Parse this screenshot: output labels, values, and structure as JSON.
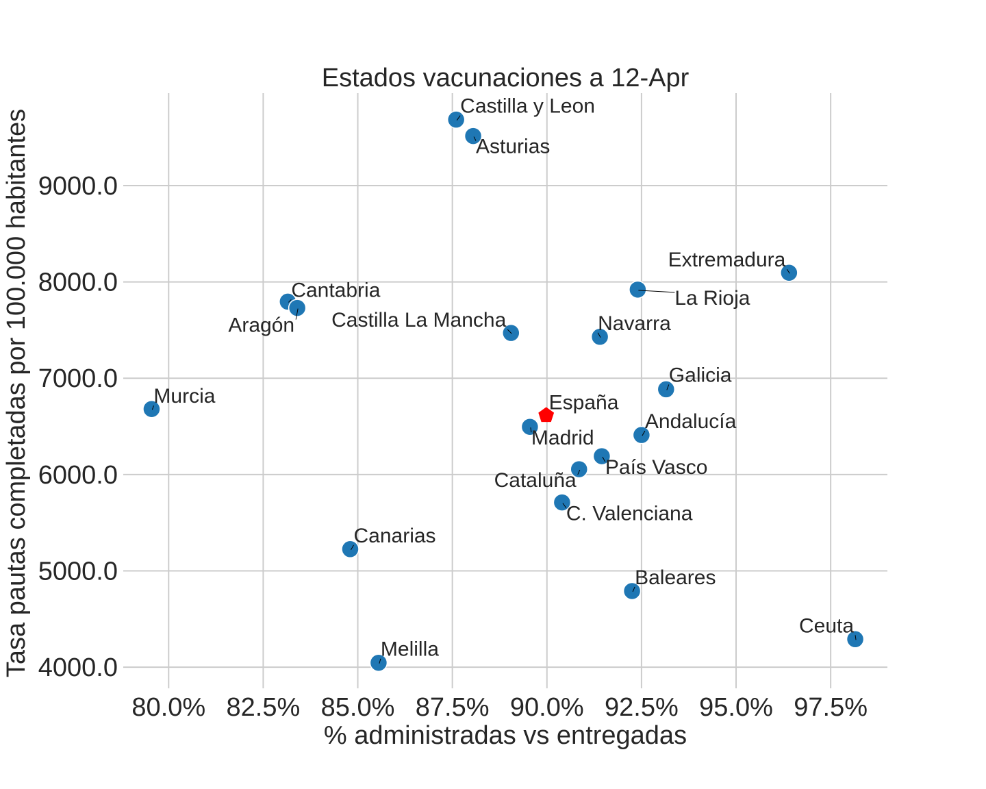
{
  "chart_data": {
    "type": "scatter",
    "title": "Estados vacunaciones a 12-Apr",
    "xlabel": "% administradas vs entregadas",
    "ylabel": "Tasa pautas completadas por 100.000 habitantes",
    "xlim": [
      78.8,
      99.0
    ],
    "ylim": [
      3780,
      9960
    ],
    "xticks": [
      80.0,
      82.5,
      85.0,
      87.5,
      90.0,
      92.5,
      95.0,
      97.5
    ],
    "xtick_labels": [
      "80.0%",
      "82.5%",
      "85.0%",
      "87.5%",
      "90.0%",
      "92.5%",
      "95.0%",
      "97.5%"
    ],
    "yticks": [
      4000,
      5000,
      6000,
      7000,
      8000,
      9000
    ],
    "ytick_labels": [
      "4000.0",
      "5000.0",
      "6000.0",
      "7000.0",
      "8000.0",
      "9000.0"
    ],
    "grid": true,
    "point_color": "#1f77b4",
    "highlight_color": "#ff0000",
    "points": [
      {
        "label": "Castilla y Leon",
        "x": 87.6,
        "y": 9685
      },
      {
        "label": "Asturias",
        "x": 88.05,
        "y": 9515
      },
      {
        "label": "Extremadura",
        "x": 96.4,
        "y": 8095
      },
      {
        "label": "La Rioja",
        "x": 92.4,
        "y": 7920
      },
      {
        "label": "Cantabria",
        "x": 83.15,
        "y": 7795
      },
      {
        "label": "Aragón",
        "x": 83.4,
        "y": 7730
      },
      {
        "label": "Castilla La Mancha",
        "x": 89.05,
        "y": 7470
      },
      {
        "label": "Navarra",
        "x": 91.4,
        "y": 7430
      },
      {
        "label": "Galicia",
        "x": 93.15,
        "y": 6885
      },
      {
        "label": "Murcia",
        "x": 79.55,
        "y": 6680
      },
      {
        "label": "Madrid",
        "x": 89.55,
        "y": 6495
      },
      {
        "label": "Andalucía",
        "x": 92.5,
        "y": 6410
      },
      {
        "label": "País Vasco",
        "x": 91.45,
        "y": 6190
      },
      {
        "label": "Cataluña",
        "x": 90.85,
        "y": 6055
      },
      {
        "label": "C. Valenciana",
        "x": 90.4,
        "y": 5710
      },
      {
        "label": "Canarias",
        "x": 84.8,
        "y": 5225
      },
      {
        "label": "Baleares",
        "x": 92.25,
        "y": 4790
      },
      {
        "label": "Ceuta",
        "x": 98.15,
        "y": 4290
      },
      {
        "label": "Melilla",
        "x": 85.55,
        "y": 4045
      }
    ],
    "highlight": {
      "label": "España",
      "x": 89.98,
      "y": 6615
    }
  }
}
